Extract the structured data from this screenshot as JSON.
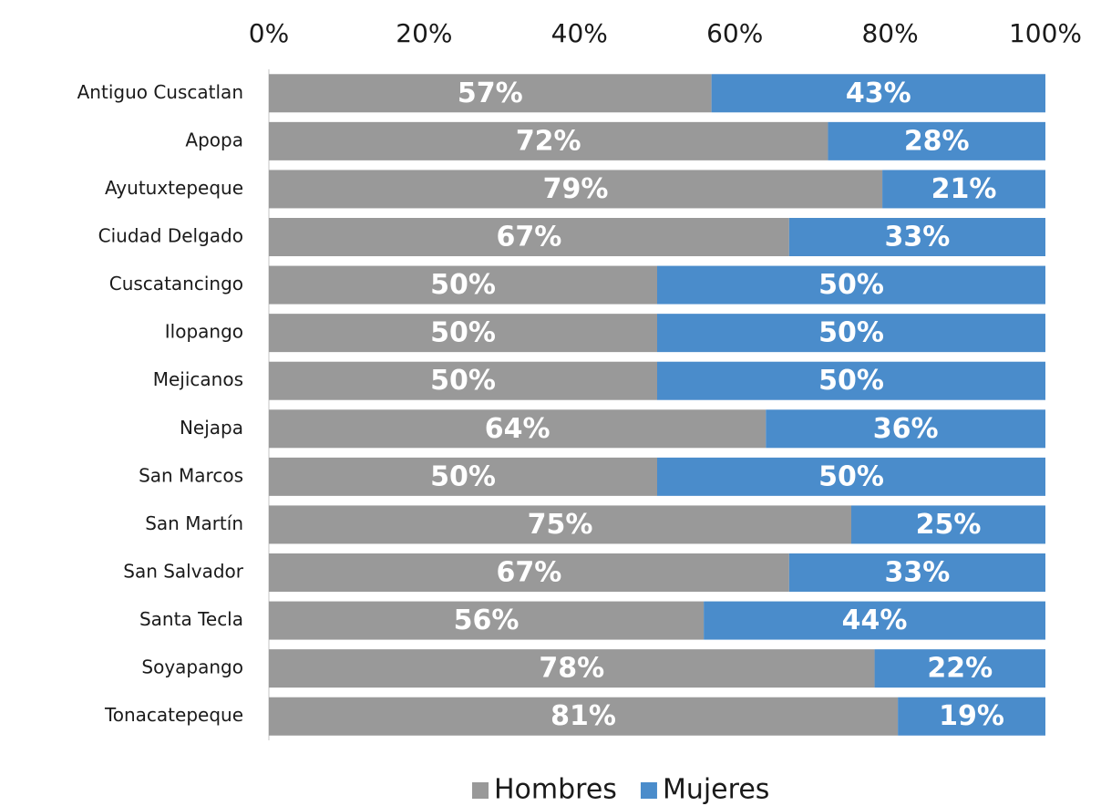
{
  "chart_data": {
    "type": "stacked_bar_horizontal",
    "categories": [
      "Antiguo Cuscatlan",
      "Apopa",
      "Ayutuxtepeque",
      "Ciudad Delgado",
      "Cuscatancingo",
      "Ilopango",
      "Mejicanos",
      "Nejapa",
      "San Marcos",
      "San Martín",
      "San Salvador",
      "Santa Tecla",
      "Soyapango",
      "Tonacatepeque"
    ],
    "series": [
      {
        "name": "Hombres",
        "color": "#999999",
        "values": [
          57,
          72,
          79,
          67,
          50,
          50,
          50,
          64,
          50,
          75,
          67,
          56,
          78,
          81
        ],
        "value_labels": [
          "57%",
          "72%",
          "79%",
          "67%",
          "50%",
          "50%",
          "50%",
          "64%",
          "50%",
          "75%",
          "67%",
          "56%",
          "78%",
          "81%"
        ]
      },
      {
        "name": "Mujeres",
        "color": "#4a8ccb",
        "values": [
          43,
          28,
          21,
          33,
          50,
          50,
          50,
          36,
          50,
          25,
          33,
          44,
          22,
          19
        ],
        "value_labels": [
          "43%",
          "28%",
          "21%",
          "33%",
          "50%",
          "50%",
          "50%",
          "36%",
          "50%",
          "25%",
          "33%",
          "44%",
          "22%",
          "19%"
        ]
      }
    ],
    "xlim": [
      0,
      100
    ],
    "xticks": [
      {
        "value": 0,
        "label": "0%"
      },
      {
        "value": 20,
        "label": "20%"
      },
      {
        "value": 40,
        "label": "40%"
      },
      {
        "value": 60,
        "label": "60%"
      },
      {
        "value": 80,
        "label": "80%"
      },
      {
        "value": 100,
        "label": "100%"
      }
    ],
    "legend": "bottom"
  }
}
